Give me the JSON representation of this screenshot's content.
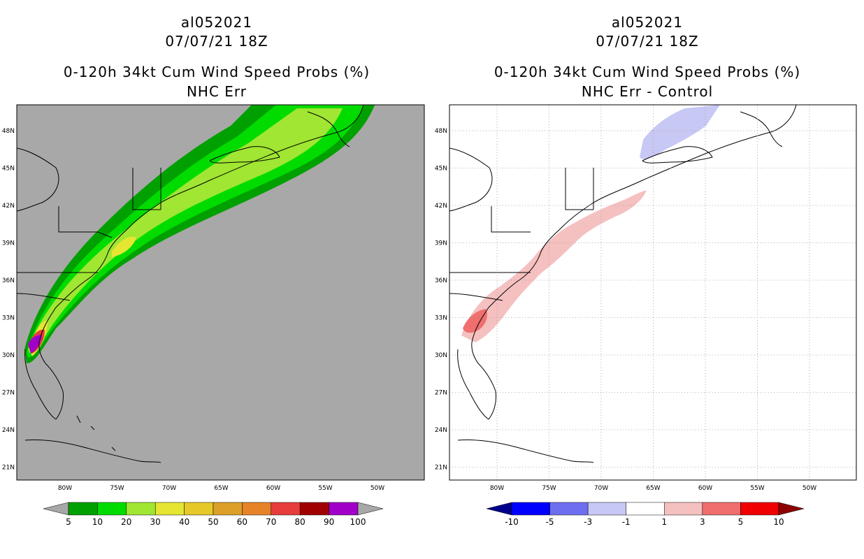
{
  "left_panel": {
    "storm_id": "al052021",
    "datetime": "07/07/21 18Z",
    "product": "0-120h 34kt Cum Wind Speed Probs (%)",
    "subtitle": "NHC Err",
    "background_color": "#a8a8a8",
    "colorbar": {
      "levels": [
        "5",
        "10",
        "20",
        "30",
        "40",
        "50",
        "60",
        "70",
        "80",
        "90",
        "100"
      ],
      "colors": [
        "#00a000",
        "#00dc00",
        "#a0e632",
        "#e6e632",
        "#e6c828",
        "#dca028",
        "#e68228",
        "#e63c3c",
        "#a00000",
        "#a000c8"
      ],
      "under_color": "#a8a8a8",
      "over_color": "#a8a8a8"
    }
  },
  "right_panel": {
    "storm_id": "al052021",
    "datetime": "07/07/21 18Z",
    "product": "0-120h 34kt Cum Wind Speed Probs (%)",
    "subtitle": "NHC Err - Control",
    "background_color": "#ffffff",
    "colorbar": {
      "levels": [
        "-10",
        "-5",
        "-3",
        "-1",
        "1",
        "3",
        "5",
        "10"
      ],
      "colors": [
        "#0000ff",
        "#6e6ef0",
        "#c8c8f5",
        "#ffffff",
        "#f5c0c0",
        "#f06e6e",
        "#f00000"
      ],
      "under_color": "#00008c",
      "over_color": "#8c0000"
    }
  },
  "axes": {
    "lat_labels": [
      "48N",
      "45N",
      "42N",
      "39N",
      "36N",
      "33N",
      "30N",
      "27N",
      "24N",
      "21N"
    ],
    "lon_labels": [
      "80W",
      "75W",
      "70W",
      "65W",
      "60W",
      "55W",
      "50W"
    ]
  }
}
